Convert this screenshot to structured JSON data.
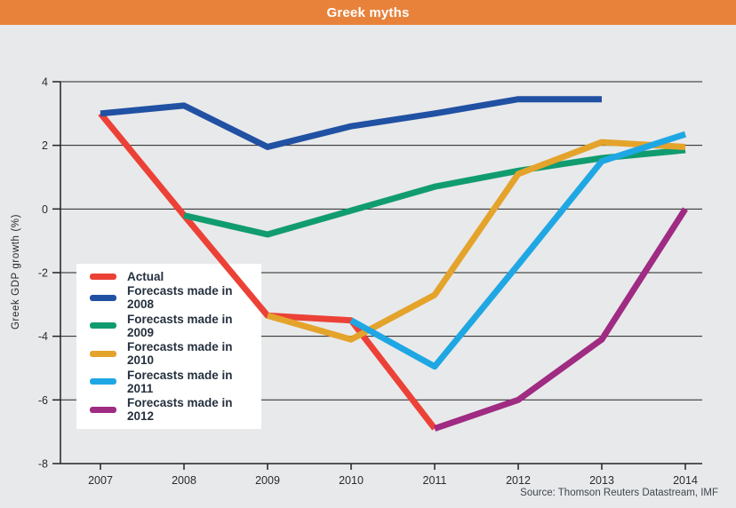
{
  "header": {
    "title": "Greek myths",
    "bg_color": "#e8823b",
    "text_color": "#ffffff"
  },
  "source": {
    "text": "Source: Thomson Reuters Datastream, IMF"
  },
  "colors": {
    "background": "#e8e9ea",
    "grid": "#232323",
    "tick_text": "#2b2b2b",
    "legend_text": "#25303e",
    "legend_background": "#ffffff"
  },
  "chart_data": {
    "type": "line",
    "title": "Greek myths",
    "xlabel": "",
    "ylabel": "Greek GDP growth (%)",
    "x": [
      2007,
      2008,
      2009,
      2010,
      2011,
      2012,
      2013,
      2014
    ],
    "ylim": [
      -8,
      4
    ],
    "ytick_step": 2,
    "yticks": [
      4,
      2,
      0,
      -2,
      -4,
      -6,
      -8
    ],
    "grid": "horizontal",
    "legend_position": "inside-left",
    "line_width": 7,
    "series": [
      {
        "name": "Actual",
        "color": "#ec4137",
        "years": [
          2007,
          2008,
          2009,
          2010,
          2011
        ],
        "values": [
          3.0,
          -0.2,
          -3.35,
          -3.5,
          -6.9
        ]
      },
      {
        "name": "Forecasts made in 2008",
        "color": "#2051a3",
        "years": [
          2007,
          2008,
          2009,
          2010,
          2011,
          2012,
          2013
        ],
        "values": [
          3.0,
          3.25,
          1.95,
          2.6,
          3.0,
          3.45,
          3.45
        ]
      },
      {
        "name": "Forecasts made in 2009",
        "color": "#119c70",
        "years": [
          2008,
          2009,
          2010,
          2011,
          2012,
          2013,
          2014
        ],
        "values": [
          -0.2,
          -0.8,
          -0.05,
          0.7,
          1.2,
          1.6,
          1.85
        ]
      },
      {
        "name": "Forecasts made in 2010",
        "color": "#e4a32b",
        "years": [
          2009,
          2010,
          2011,
          2012,
          2013,
          2014
        ],
        "values": [
          -3.35,
          -4.1,
          -2.7,
          1.1,
          2.1,
          1.95
        ]
      },
      {
        "name": "Forecasts made in 2011",
        "color": "#1fa7e4",
        "years": [
          2010,
          2011,
          2012,
          2013,
          2014
        ],
        "values": [
          -3.5,
          -4.95,
          -1.75,
          1.5,
          2.35
        ]
      },
      {
        "name": "Forecasts made in 2012",
        "color": "#9f2b83",
        "years": [
          2011,
          2012,
          2013,
          2014
        ],
        "values": [
          -6.9,
          -6.0,
          -4.1,
          0.0
        ]
      }
    ]
  }
}
